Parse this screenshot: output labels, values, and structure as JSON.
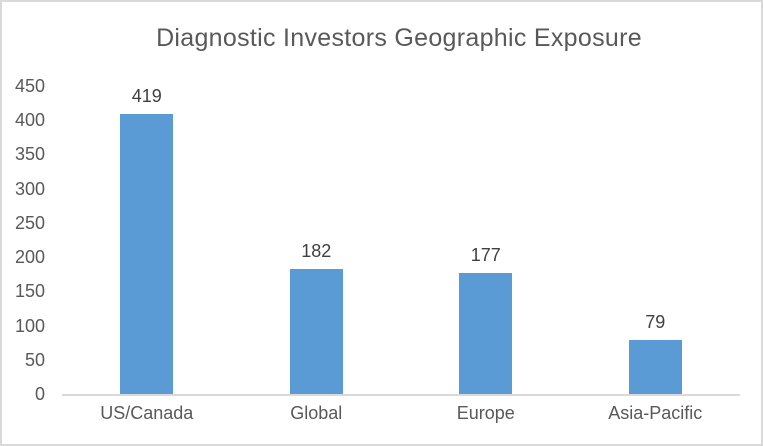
{
  "window": {
    "background_color": "#FFFFFF",
    "border_color": "#D9D9D9"
  },
  "chart_data": {
    "type": "bar",
    "title": "Diagnostic Investors Geographic Exposure",
    "categories": [
      "US/Canada",
      "Global",
      "Europe",
      "Asia-Pacific"
    ],
    "values": [
      419,
      182,
      177,
      79
    ],
    "data_labels": [
      "419",
      "182",
      "177",
      "79"
    ],
    "xlabel": "",
    "ylabel": "",
    "ylim": [
      0,
      450
    ],
    "yticks": [
      0,
      50,
      100,
      150,
      200,
      250,
      300,
      350,
      400,
      450
    ],
    "grid": false,
    "legend": "none",
    "bar_color": "#5B9BD5",
    "axis_line_color": "#D9D9D9",
    "title_color": "#595959",
    "tick_label_color": "#595959",
    "data_label_color": "#404040"
  }
}
